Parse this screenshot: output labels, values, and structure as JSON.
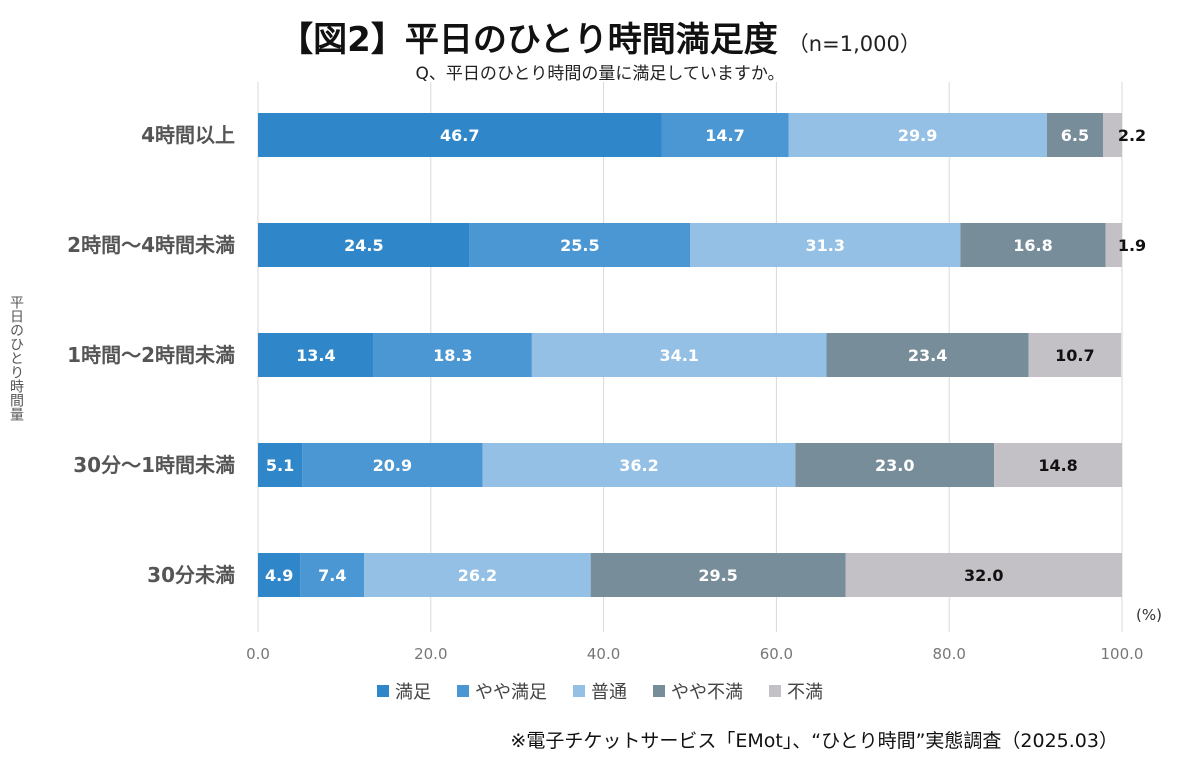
{
  "title": "【図2】平日のひとり時間満足度",
  "sample_size": "（n=1,000）",
  "subtitle": "Q、平日のひとり時間の量に満足していますか。",
  "note": "※電子チケットサービス「EMot」、“ひとり時間”実態調査（2025.03）",
  "chart_data": {
    "type": "bar",
    "orientation": "horizontal",
    "stacked": true,
    "title": "【図2】平日のひとり時間満足度",
    "subtitle": "Q、平日のひとり時間の量に満足していますか。",
    "ylabel": "平日のひとり時間量",
    "unit_label": "(%)",
    "xlim": [
      0,
      100
    ],
    "x_ticks": [
      "0.0",
      "20.0",
      "40.0",
      "60.0",
      "80.0",
      "100.0"
    ],
    "grid": true,
    "legend_position": "bottom",
    "categories": [
      "4時間以上",
      "2時間〜4時間未満",
      "1時間〜2時間未満",
      "30分〜1時間未満",
      "30分未満"
    ],
    "series": [
      {
        "name": "満足",
        "color": "#2f86c8",
        "values": [
          46.7,
          24.5,
          13.4,
          5.1,
          4.9
        ]
      },
      {
        "name": "やや満足",
        "color": "#4a97d4",
        "values": [
          14.7,
          25.5,
          18.3,
          20.9,
          7.4
        ]
      },
      {
        "name": "普通",
        "color": "#94c0e6",
        "values": [
          29.9,
          31.3,
          34.1,
          36.2,
          26.2
        ]
      },
      {
        "name": "やや不満",
        "color": "#788d9a",
        "values": [
          6.5,
          16.8,
          23.4,
          23.0,
          29.5
        ]
      },
      {
        "name": "不満",
        "color": "#c3c1c6",
        "values": [
          2.2,
          1.9,
          10.7,
          14.8,
          32.0
        ]
      }
    ]
  }
}
